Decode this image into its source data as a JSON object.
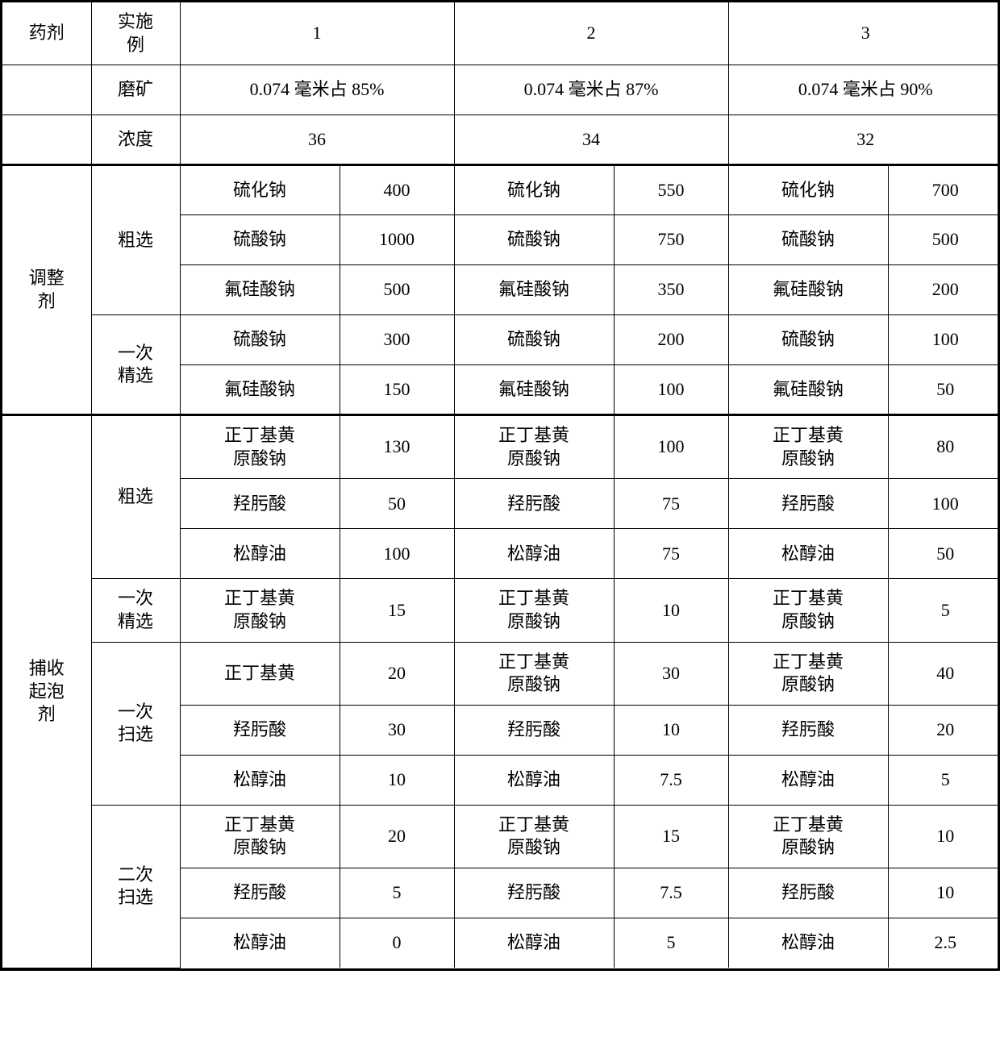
{
  "hdr": {
    "reagent": "药剂",
    "example": "实施\n例",
    "c1": "1",
    "c2": "2",
    "c3": "3"
  },
  "grind": {
    "label": "磨矿",
    "v1": "0.074 毫米占 85%",
    "v2": "0.074 毫米占 87%",
    "v3": "0.074 毫米占 90%"
  },
  "conc": {
    "label": "浓度",
    "v1": "36",
    "v2": "34",
    "v3": "32"
  },
  "sec1": {
    "title": "调整\n剂",
    "stage1": "粗选",
    "stage2": "一次\n精选",
    "rows": [
      {
        "a": "硫化钠",
        "av": "400",
        "b": "硫化钠",
        "bv": "550",
        "c": "硫化钠",
        "cv": "700"
      },
      {
        "a": "硫酸钠",
        "av": "1000",
        "b": "硫酸钠",
        "bv": "750",
        "c": "硫酸钠",
        "cv": "500"
      },
      {
        "a": "氟硅酸钠",
        "av": "500",
        "b": "氟硅酸钠",
        "bv": "350",
        "c": "氟硅酸钠",
        "cv": "200"
      },
      {
        "a": "硫酸钠",
        "av": "300",
        "b": "硫酸钠",
        "bv": "200",
        "c": "硫酸钠",
        "cv": "100"
      },
      {
        "a": "氟硅酸钠",
        "av": "150",
        "b": "氟硅酸钠",
        "bv": "100",
        "c": "氟硅酸钠",
        "cv": "50"
      }
    ]
  },
  "sec2": {
    "title": "捕收\n起泡\n剂",
    "stage1": "粗选",
    "stage2": "一次\n精选",
    "stage3": "一次\n扫选",
    "stage4": "二次\n扫选",
    "rows": [
      {
        "a": "正丁基黄\n原酸钠",
        "av": "130",
        "b": "正丁基黄\n原酸钠",
        "bv": "100",
        "c": "正丁基黄\n原酸钠",
        "cv": "80"
      },
      {
        "a": "羟肟酸",
        "av": "50",
        "b": "羟肟酸",
        "bv": "75",
        "c": "羟肟酸",
        "cv": "100"
      },
      {
        "a": "松醇油",
        "av": "100",
        "b": "松醇油",
        "bv": "75",
        "c": "松醇油",
        "cv": "50"
      },
      {
        "a": "正丁基黄\n原酸钠",
        "av": "15",
        "b": "正丁基黄\n原酸钠",
        "bv": "10",
        "c": "正丁基黄\n原酸钠",
        "cv": "5"
      },
      {
        "a": "正丁基黄",
        "av": "20",
        "b": "正丁基黄\n原酸钠",
        "bv": "30",
        "c": "正丁基黄\n原酸钠",
        "cv": "40"
      },
      {
        "a": "羟肟酸",
        "av": "30",
        "b": "羟肟酸",
        "bv": "10",
        "c": "羟肟酸",
        "cv": "20"
      },
      {
        "a": "松醇油",
        "av": "10",
        "b": "松醇油",
        "bv": "7.5",
        "c": "松醇油",
        "cv": "5"
      },
      {
        "a": "正丁基黄\n原酸钠",
        "av": "20",
        "b": "正丁基黄\n原酸钠",
        "bv": "15",
        "c": "正丁基黄\n原酸钠",
        "cv": "10"
      },
      {
        "a": "羟肟酸",
        "av": "5",
        "b": "羟肟酸",
        "bv": "7.5",
        "c": "羟肟酸",
        "cv": "10"
      },
      {
        "a": "松醇油",
        "av": "0",
        "b": "松醇油",
        "bv": "5",
        "c": "松醇油",
        "cv": "2.5"
      }
    ]
  }
}
